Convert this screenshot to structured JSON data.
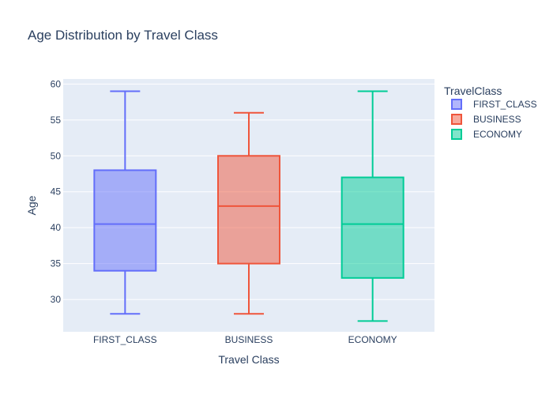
{
  "chart_data": {
    "type": "box",
    "title": "Age Distribution by Travel Class",
    "xlabel": "Travel Class",
    "ylabel": "Age",
    "ylim": [
      25.5,
      60.7
    ],
    "yticks": [
      30,
      35,
      40,
      45,
      50,
      55,
      60
    ],
    "grid": true,
    "legend": {
      "title": "TravelClass",
      "placement": "right"
    },
    "categories": [
      "FIRST_CLASS",
      "BUSINESS",
      "ECONOMY"
    ],
    "series": [
      {
        "name": "FIRST_CLASS",
        "color": "#636efa",
        "min": 28,
        "q1": 34,
        "median": 40.5,
        "q3": 48,
        "max": 59
      },
      {
        "name": "BUSINESS",
        "color": "#ef553b",
        "min": 28,
        "q1": 35,
        "median": 43,
        "q3": 50,
        "max": 56
      },
      {
        "name": "ECONOMY",
        "color": "#00cc96",
        "min": 27,
        "q1": 33,
        "median": 40.5,
        "q3": 47,
        "max": 59
      }
    ]
  }
}
